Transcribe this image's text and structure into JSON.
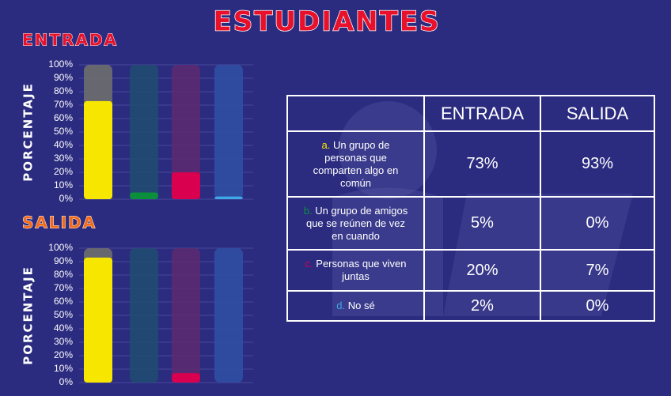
{
  "title": "ESTUDIANTES",
  "chart_data": [
    {
      "type": "bar",
      "title": "ENTRADA",
      "y_label": "PORCENTAJE",
      "categories": [
        null,
        null,
        null,
        null
      ],
      "values": [
        73,
        5,
        20,
        2
      ],
      "colors": [
        "#f7e600",
        "#0b8f3c",
        "#d9004f",
        "#3da9e6"
      ],
      "ylim": [
        0,
        100
      ],
      "grid": true,
      "yticks": [
        {
          "value": 0,
          "label": "0%"
        },
        {
          "value": 10,
          "label": "10%"
        },
        {
          "value": 20,
          "label": "20%"
        },
        {
          "value": 30,
          "label": "30%"
        },
        {
          "value": 40,
          "label": "40%"
        },
        {
          "value": 50,
          "label": "50%"
        },
        {
          "value": 60,
          "label": "60%"
        },
        {
          "value": 70,
          "label": "70%"
        },
        {
          "value": 80,
          "label": "80%"
        },
        {
          "value": 90,
          "label": "90%"
        },
        {
          "value": 100,
          "label": "100%"
        }
      ]
    },
    {
      "type": "bar",
      "title": "SALIDA",
      "y_label": "PORCENTAJE",
      "categories": [
        null,
        null,
        null,
        null
      ],
      "values": [
        93,
        0,
        7,
        0
      ],
      "colors": [
        "#f7e600",
        "#0b8f3c",
        "#d9004f",
        "#3da9e6"
      ],
      "ylim": [
        0,
        100
      ],
      "grid": true,
      "yticks": [
        {
          "value": 0,
          "label": "0%"
        },
        {
          "value": 10,
          "label": "10%"
        },
        {
          "value": 20,
          "label": "20%"
        },
        {
          "value": 30,
          "label": "30%"
        },
        {
          "value": 40,
          "label": "40%"
        },
        {
          "value": 50,
          "label": "50%"
        },
        {
          "value": 60,
          "label": "60%"
        },
        {
          "value": 70,
          "label": "70%"
        },
        {
          "value": 80,
          "label": "80%"
        },
        {
          "value": 90,
          "label": "90%"
        },
        {
          "value": 100,
          "label": "100%"
        }
      ]
    }
  ],
  "table": {
    "header": [
      "ENTRADA",
      "SALIDA"
    ],
    "rows": [
      {
        "letter": "a.",
        "text": "Un grupo de personas que comparten algo en común",
        "cells": [
          "73%",
          "93%"
        ]
      },
      {
        "letter": "b.",
        "text": "Un grupo de amigos que se reúnen de vez en cuando",
        "cells": [
          "5%",
          "0%"
        ]
      },
      {
        "letter": "c.",
        "text": "Personas que viven juntas",
        "cells": [
          "20%",
          "7%"
        ]
      },
      {
        "letter": "d.",
        "text": "No sé",
        "cells": [
          "2%",
          "0%"
        ]
      }
    ]
  }
}
